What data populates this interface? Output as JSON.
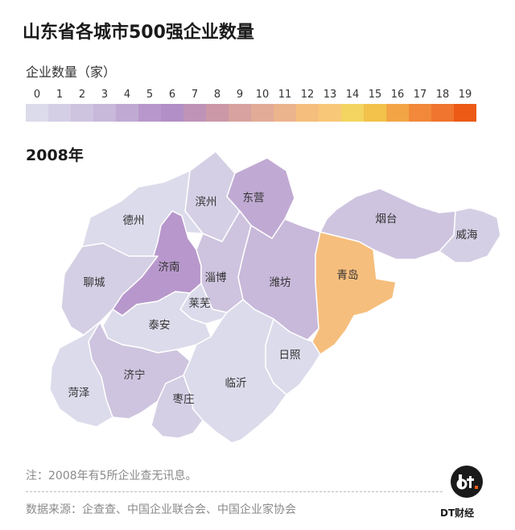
{
  "header": {
    "title": "山东省各城市500强企业数量",
    "legend_title": "企业数量（家）",
    "year": "2008年"
  },
  "legend": {
    "labels": [
      "0",
      "1",
      "2",
      "3",
      "4",
      "5",
      "6",
      "7",
      "8",
      "9",
      "10",
      "11",
      "12",
      "13",
      "14",
      "15",
      "16",
      "17",
      "18",
      "19"
    ],
    "colors": [
      "#dcdbeb",
      "#d5cfe5",
      "#cec4df",
      "#c8b8da",
      "#c0aad3",
      "#b898cc",
      "#b28fc6",
      "#bf93b8",
      "#cb98a8",
      "#d7a29f",
      "#e2ab97",
      "#ebb48d",
      "#f6be7c",
      "#f8c878",
      "#f4d460",
      "#f2c24a",
      "#f3a545",
      "#f2883a",
      "#f0752e",
      "#ec5a16"
    ]
  },
  "map": {
    "cities": [
      {
        "name": "滨州",
        "color": "#d5cfe5"
      },
      {
        "name": "东营",
        "color": "#c0aad3"
      },
      {
        "name": "德州",
        "color": "#dcdbeb"
      },
      {
        "name": "烟台",
        "color": "#cec4df"
      },
      {
        "name": "威海",
        "color": "#d5cfe5"
      },
      {
        "name": "济南",
        "color": "#b898cc"
      },
      {
        "name": "聊城",
        "color": "#d5cfe5"
      },
      {
        "name": "淄博",
        "color": "#cec4df"
      },
      {
        "name": "潍坊",
        "color": "#c8b8da"
      },
      {
        "name": "青岛",
        "color": "#f6be7c"
      },
      {
        "name": "莱芜",
        "color": "#dcdbeb"
      },
      {
        "name": "泰安",
        "color": "#dcdbeb"
      },
      {
        "name": "日照",
        "color": "#dcdbeb"
      },
      {
        "name": "济宁",
        "color": "#cec4df"
      },
      {
        "name": "菏泽",
        "color": "#dcdbeb"
      },
      {
        "name": "临沂",
        "color": "#dcdbeb"
      },
      {
        "name": "枣庄",
        "color": "#d5cfe5"
      }
    ]
  },
  "footer": {
    "note": "注：2008年有5所企业查无讯息。",
    "source": "数据来源：企查查、中国企业联合会、中国企业家协会",
    "logo_label": "DT财经"
  }
}
